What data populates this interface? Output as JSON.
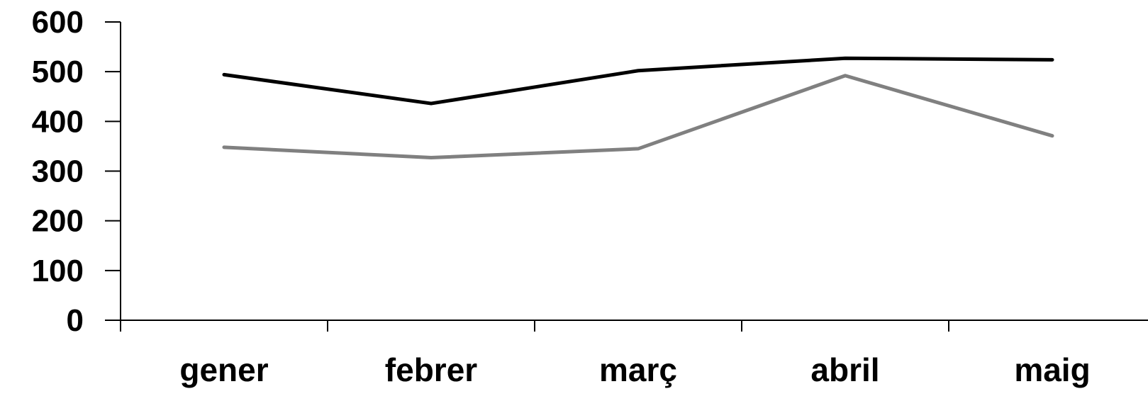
{
  "chart_data": {
    "type": "line",
    "title": "",
    "xlabel": "",
    "ylabel": "",
    "categories": [
      "gener",
      "febrer",
      "març",
      "abril",
      "maig"
    ],
    "ylim": [
      0,
      600
    ],
    "yticks": [
      0,
      100,
      200,
      300,
      400,
      500,
      600
    ],
    "grid": false,
    "legend": "none",
    "series": [
      {
        "values": [
          494,
          436,
          502,
          527,
          524
        ],
        "color": "#000000"
      },
      {
        "values": [
          348,
          327,
          345,
          492,
          371
        ],
        "color": "#808080"
      }
    ]
  }
}
